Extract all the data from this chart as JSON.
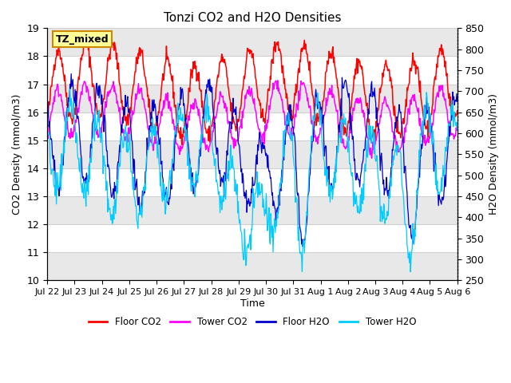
{
  "title": "Tonzi CO2 and H2O Densities",
  "xlabel": "Time",
  "ylabel_left": "CO2 Density (mmol/m3)",
  "ylabel_right": "H2O Density (mmol/m3)",
  "annotation": "TZ_mixed",
  "co2_ylim": [
    10.0,
    19.0
  ],
  "h2o_ylim": [
    250,
    850
  ],
  "co2_yticks": [
    10.0,
    11.0,
    12.0,
    13.0,
    14.0,
    15.0,
    16.0,
    17.0,
    18.0,
    19.0
  ],
  "h2o_yticks": [
    250,
    300,
    350,
    400,
    450,
    500,
    550,
    600,
    650,
    700,
    750,
    800,
    850
  ],
  "colors": {
    "floor_co2": "#ff0000",
    "tower_co2": "#ff00ff",
    "floor_h2o": "#0000cc",
    "tower_h2o": "#00ccff"
  },
  "legend_labels": [
    "Floor CO2",
    "Tower CO2",
    "Floor H2O",
    "Tower H2O"
  ],
  "bg_color": "#ffffff",
  "grid_color": "#d0d0d0",
  "stripe_color": "#e8e8e8",
  "n_days": 15,
  "pts_per_day": 48,
  "xtick_labels": [
    "Jul 22",
    "Jul 23",
    "Jul 24",
    "Jul 25",
    "Jul 26",
    "Jul 27",
    "Jul 28",
    "Jul 29",
    "Jul 30",
    "Jul 31",
    "Aug 1",
    "Aug 2",
    "Aug 3",
    "Aug 4",
    "Aug 5",
    "Aug 6"
  ]
}
